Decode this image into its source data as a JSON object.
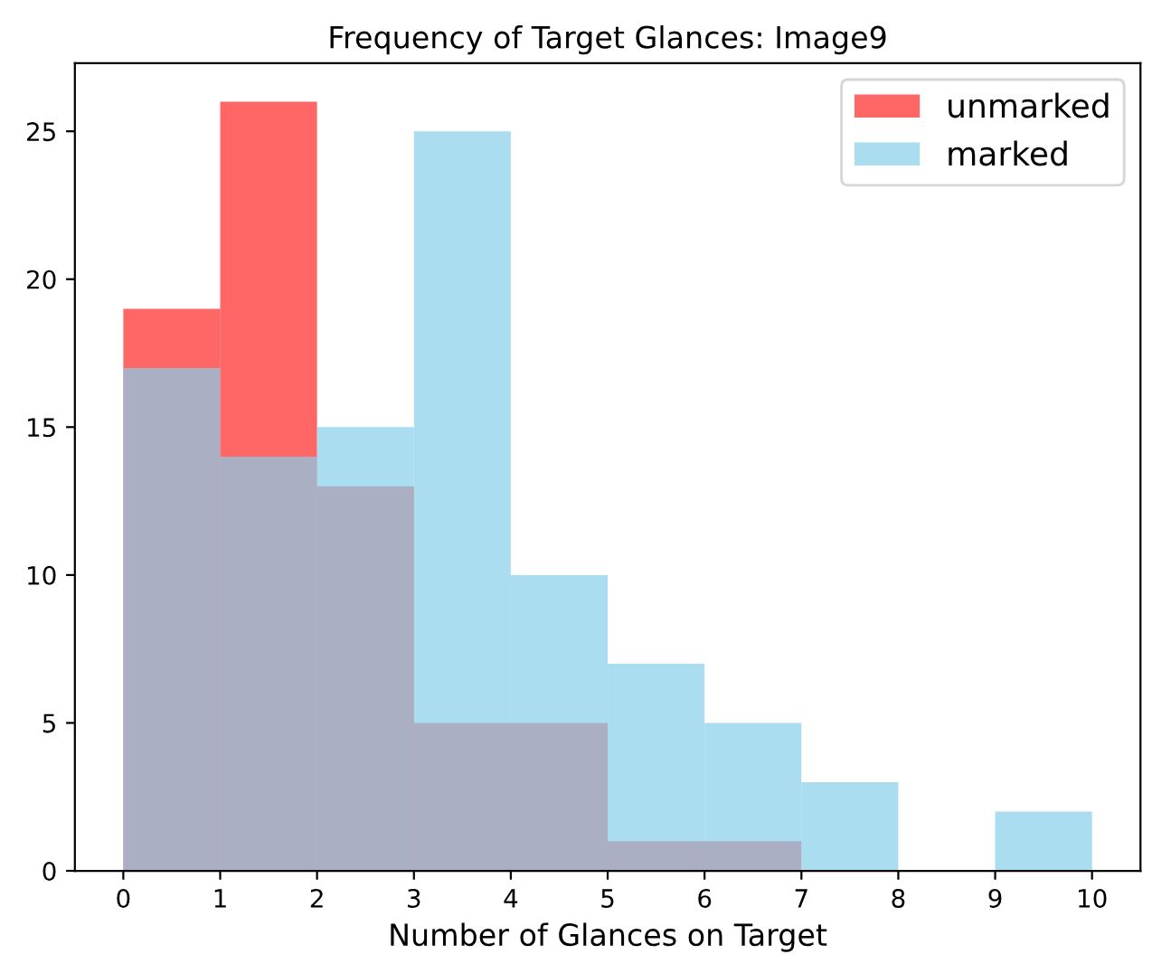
{
  "chart_data": {
    "type": "histogram",
    "title": "Frequency of Target Glances: Image9",
    "xlabel": "Number of Glances on Target",
    "bins": [
      0,
      1,
      2,
      3,
      4,
      5,
      6,
      7,
      8,
      9,
      10
    ],
    "series": [
      {
        "name": "unmarked",
        "color": "#ff0000",
        "values": [
          19,
          26,
          13,
          5,
          5,
          1,
          1,
          0,
          0,
          0
        ]
      },
      {
        "name": "marked",
        "color": "#87ceeb",
        "values": [
          17,
          14,
          15,
          25,
          10,
          7,
          5,
          3,
          0,
          2
        ]
      }
    ],
    "xlim": [
      -0.5,
      10.5
    ],
    "xticks": [
      0,
      1,
      2,
      3,
      4,
      5,
      6,
      7,
      8,
      9,
      10
    ],
    "ylim": [
      0,
      27.3
    ],
    "yticks": [
      0,
      5,
      10,
      15,
      20,
      25
    ],
    "grid": false,
    "legend": "top right"
  }
}
